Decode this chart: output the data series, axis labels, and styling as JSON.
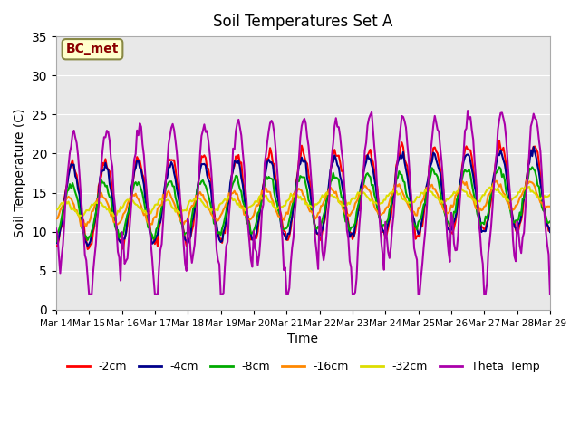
{
  "title": "Soil Temperatures Set A",
  "xlabel": "Time",
  "ylabel": "Soil Temperature (C)",
  "ylim": [
    0,
    35
  ],
  "annotation": "BC_met",
  "bg_color": "#e8e8e8",
  "line_colors": {
    "-2cm": "#ff0000",
    "-4cm": "#00008b",
    "-8cm": "#00aa00",
    "-16cm": "#ff8800",
    "-32cm": "#dddd00",
    "Theta_Temp": "#aa00aa"
  },
  "legend_labels": [
    "-2cm",
    "-4cm",
    "-8cm",
    "-16cm",
    "-32cm",
    "Theta_Temp"
  ],
  "xtick_labels": [
    "Mar 14",
    "Mar 15",
    "Mar 16",
    "Mar 17",
    "Mar 18",
    "Mar 19",
    "Mar 20",
    "Mar 21",
    "Mar 22",
    "Mar 23",
    "Mar 24",
    "Mar 25",
    "Mar 26",
    "Mar 27",
    "Mar 28",
    "Mar 29"
  ],
  "n_points": 361,
  "days": 15
}
